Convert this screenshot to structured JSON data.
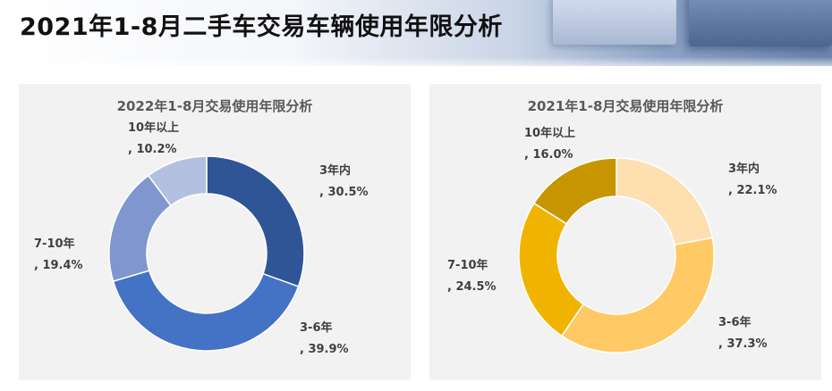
{
  "header": {
    "title": "2021年1-8月二手车交易车辆使用年限分析"
  },
  "chart_data": [
    {
      "type": "pie",
      "title": "2022年1-8月交易使用年限分析",
      "categories": [
        "3年内",
        "3-6年",
        "7-10年",
        "10年以上"
      ],
      "values": [
        30.5,
        39.9,
        19.4,
        10.2
      ],
      "value_labels": [
        ", 30.5%",
        ", 39.9%",
        ", 19.4%",
        ", 10.2%"
      ],
      "colors": [
        "#2f5597",
        "#4472c4",
        "#7f96cf",
        "#b4c0e0"
      ],
      "legend": "none"
    },
    {
      "type": "pie",
      "title": "2021年1-8月交易使用年限分析",
      "categories": [
        "3年内",
        "3-6年",
        "7-10年",
        "10年以上"
      ],
      "values": [
        22.1,
        37.3,
        24.5,
        16.0
      ],
      "value_labels": [
        ", 22.1%",
        ", 37.3%",
        ", 24.5%",
        ", 16.0%"
      ],
      "colors": [
        "#fddfb0",
        "#ffc966",
        "#f0b400",
        "#c69500"
      ],
      "legend": "none"
    }
  ]
}
